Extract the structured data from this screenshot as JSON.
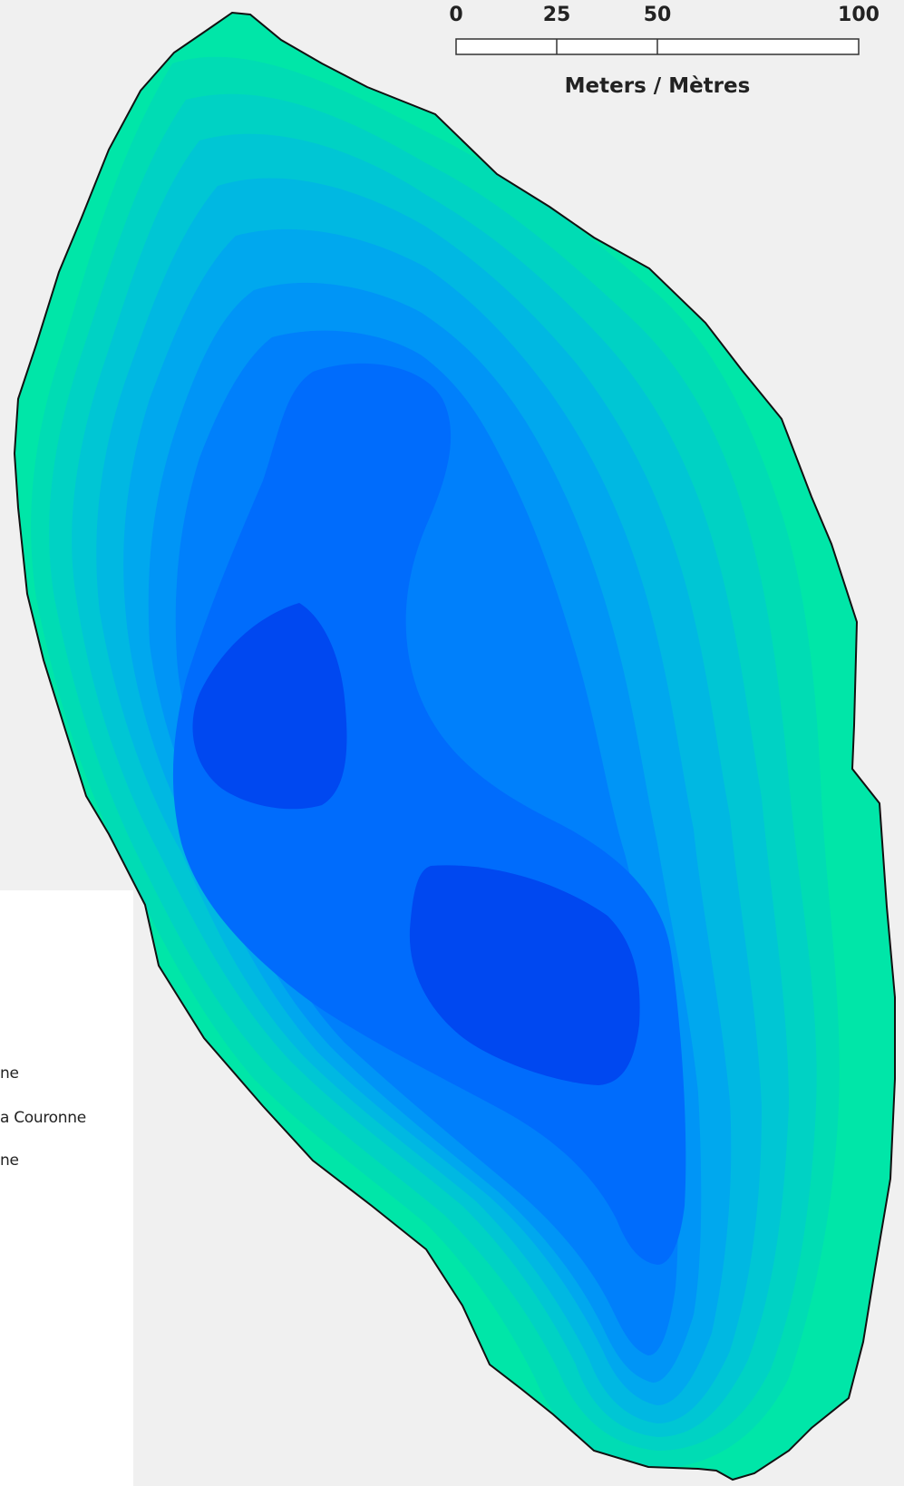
{
  "map": {
    "colors": {
      "background": "#f0f0f0",
      "legend_panel": "#ffffff",
      "outline": "#111111",
      "depth_bands": [
        "#00e6a8",
        "#00dcb4",
        "#00d2c4",
        "#00c6d4",
        "#00b8e2",
        "#00a8ee",
        "#0095f6",
        "#0080fb",
        "#006cfc",
        "#0048f0"
      ]
    }
  },
  "scale_bar": {
    "ticks": [
      "0",
      "25",
      "50",
      "100"
    ],
    "label": "Meters / Mètres"
  },
  "legend": {
    "items": [
      "ne",
      "a Couronne",
      "ne"
    ]
  }
}
